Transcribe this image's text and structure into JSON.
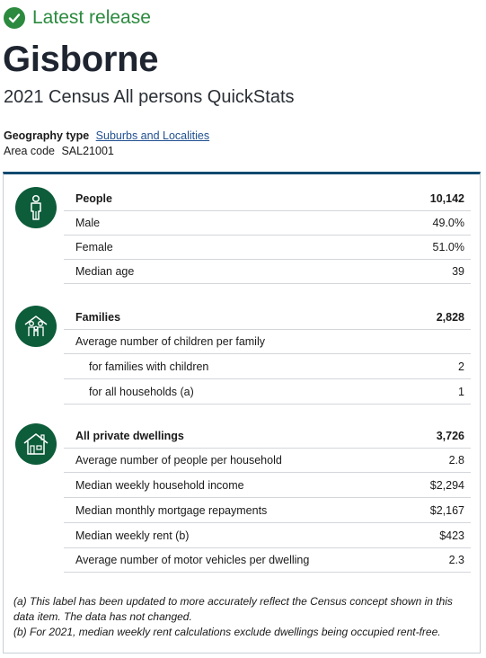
{
  "status_badge": {
    "label": "Latest release",
    "color": "#2b8a3e",
    "icon": "check-circle-icon"
  },
  "title": "Gisborne",
  "subtitle": "2021 Census All persons QuickStats",
  "geography": {
    "type_label": "Geography type",
    "type_value": "Suburbs and Localities",
    "code_label": "Area code",
    "code_value": "SAL21001"
  },
  "sections": {
    "people": {
      "icon": "person-icon",
      "header": {
        "label": "People",
        "value": "10,142"
      },
      "rows": [
        {
          "label": "Male",
          "value": "49.0%"
        },
        {
          "label": "Female",
          "value": "51.0%"
        },
        {
          "label": "Median age",
          "value": "39"
        }
      ]
    },
    "families": {
      "icon": "family-icon",
      "header": {
        "label": "Families",
        "value": "2,828"
      },
      "rows": [
        {
          "label": "Average number of children per family",
          "value": ""
        },
        {
          "label": "for families with children",
          "value": "2"
        },
        {
          "label": "for all households (a)",
          "value": "1"
        }
      ]
    },
    "dwellings": {
      "icon": "house-icon",
      "header": {
        "label": "All private dwellings",
        "value": "3,726"
      },
      "rows": [
        {
          "label": "Average number of people per household",
          "value": "2.8"
        },
        {
          "label": "Median weekly household income",
          "value": "$2,294"
        },
        {
          "label": "Median monthly mortgage repayments",
          "value": "$2,167"
        },
        {
          "label": "Median weekly rent (b)",
          "value": "$423"
        },
        {
          "label": "Average number of motor vehicles per dwelling",
          "value": "2.3"
        }
      ]
    }
  },
  "notes": [
    "(a) This label has been updated to more accurately reflect the Census concept shown in this data item. The data has not changed.",
    "(b) For 2021, median weekly rent calculations exclude dwellings being occupied rent-free."
  ],
  "colors": {
    "accent_green": "#2b8a3e",
    "icon_green": "#0d5c3a",
    "card_top": "#0e4a6e",
    "link": "#1f4f8f"
  }
}
